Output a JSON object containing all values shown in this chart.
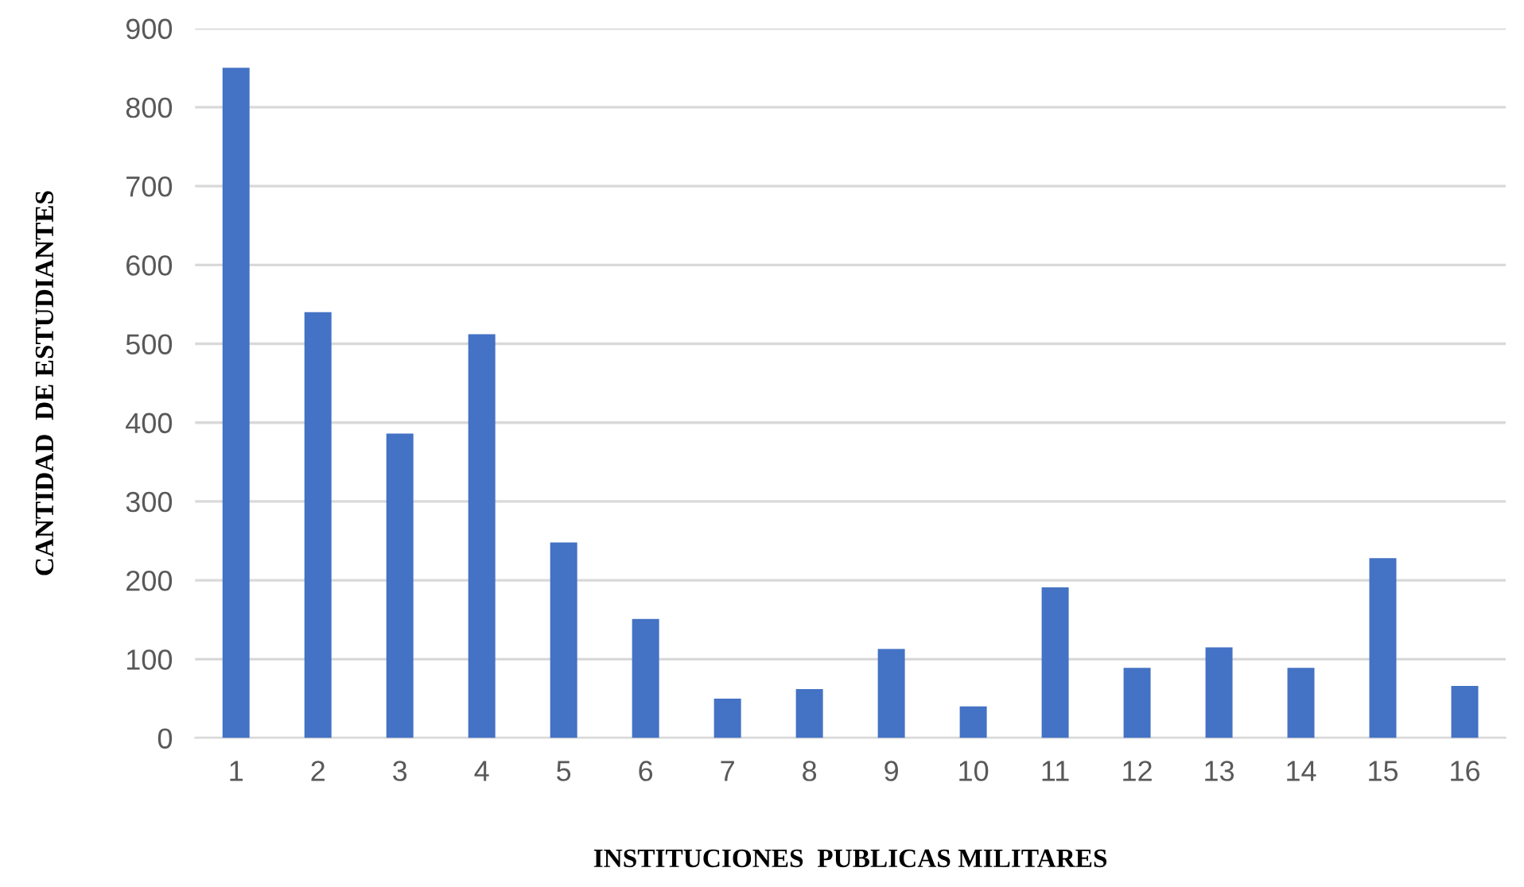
{
  "chart_data": {
    "type": "bar",
    "xlabel": "INSTITUCIONES  PUBLICAS MILITARES",
    "ylabel": "CANTIDAD  DE ESTUDIANTES",
    "categories": [
      "1",
      "2",
      "3",
      "4",
      "5",
      "6",
      "7",
      "8",
      "9",
      "10",
      "11",
      "12",
      "13",
      "14",
      "15",
      "16"
    ],
    "values": [
      850,
      540,
      386,
      512,
      248,
      151,
      50,
      62,
      113,
      40,
      191,
      89,
      115,
      89,
      228,
      66
    ],
    "color": "#4472c4",
    "ylim": [
      0,
      900
    ],
    "yticks": [
      0,
      100,
      200,
      300,
      400,
      500,
      600,
      700,
      800,
      900
    ],
    "grid": "y",
    "legend": false
  }
}
